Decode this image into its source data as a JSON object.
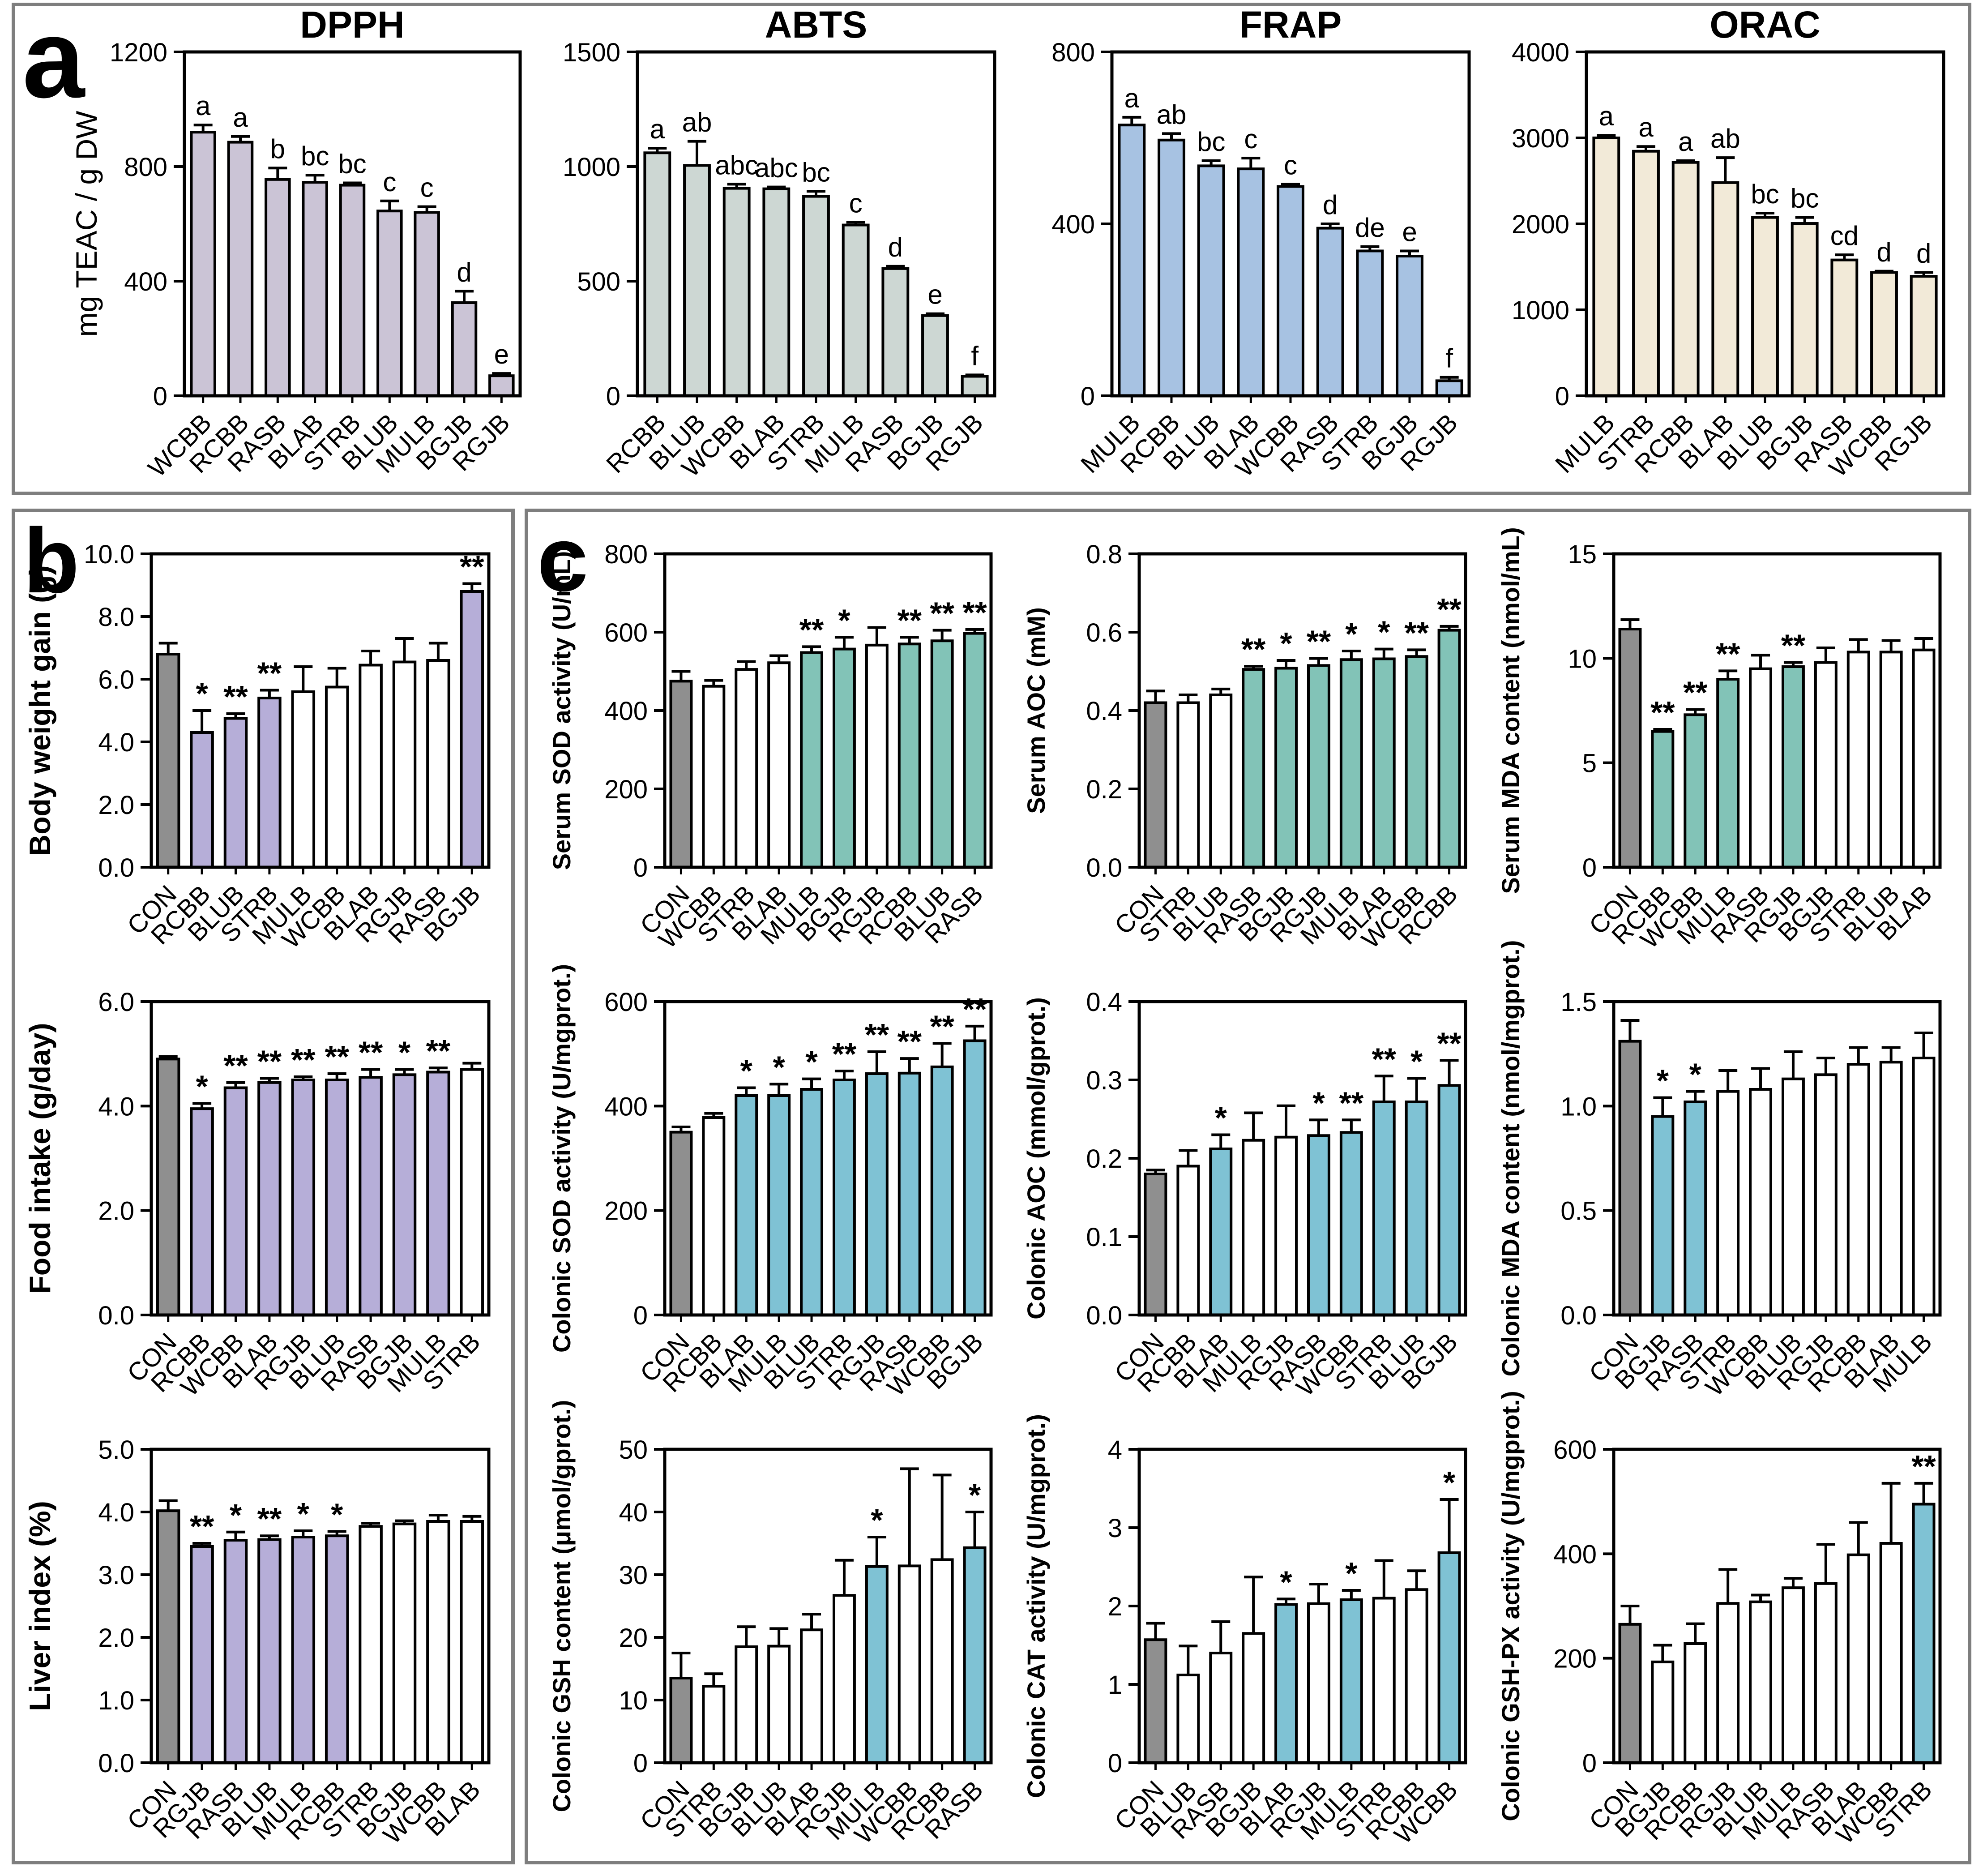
{
  "panels": [
    {
      "id": "a",
      "label": "a"
    },
    {
      "id": "b",
      "label": "b"
    },
    {
      "id": "c",
      "label": "c"
    }
  ],
  "palette": {
    "axis": "#000000",
    "panel_border": "#7e7e7e",
    "grey": "#8f8f8f",
    "white": "#ffffff",
    "purple": "#b6aed8",
    "teal": "#82c3b7",
    "blue": "#7fc2d4",
    "dpph": "#cbc4d6",
    "abts": "#cdd7d3",
    "frap": "#a7c2e2",
    "orac": "#f2ead8"
  },
  "chart_data": [
    {
      "id": "dpph",
      "panel": "a",
      "type": "bar",
      "title": "DPPH",
      "ylabel": "mg TEAC / g DW",
      "ylim": [
        0,
        1200
      ],
      "yticks": [
        0,
        400,
        800,
        1200
      ],
      "ytick_labels": [
        "0",
        "400",
        "800",
        "1200"
      ],
      "categories": [
        "WCBB",
        "RCBB",
        "RASB",
        "BLAB",
        "STRB",
        "BLUB",
        "MULB",
        "BGJB",
        "RGJB"
      ],
      "values": [
        920,
        885,
        755,
        745,
        735,
        645,
        640,
        325,
        70
      ],
      "errors": [
        25,
        20,
        40,
        25,
        8,
        35,
        20,
        40,
        8
      ],
      "annotations": [
        "a",
        "a",
        "b",
        "bc",
        "bc",
        "c",
        "c",
        "d",
        "e"
      ],
      "fills": [
        "dpph",
        "dpph",
        "dpph",
        "dpph",
        "dpph",
        "dpph",
        "dpph",
        "dpph",
        "dpph"
      ]
    },
    {
      "id": "abts",
      "panel": "a",
      "type": "bar",
      "title": "ABTS",
      "ylabel": "",
      "ylim": [
        0,
        1500
      ],
      "yticks": [
        0,
        500,
        1000,
        1500
      ],
      "ytick_labels": [
        "0",
        "500",
        "1000",
        "1500"
      ],
      "categories": [
        "RCBB",
        "BLUB",
        "WCBB",
        "BLAB",
        "STRB",
        "MULB",
        "RASB",
        "BGJB",
        "RGJB"
      ],
      "values": [
        1060,
        1005,
        905,
        903,
        870,
        745,
        555,
        350,
        85
      ],
      "errors": [
        20,
        105,
        18,
        8,
        22,
        12,
        10,
        8,
        6
      ],
      "annotations": [
        "a",
        "ab",
        "abc",
        "abc",
        "bc",
        "c",
        "d",
        "e",
        "f"
      ],
      "fills": [
        "abts",
        "abts",
        "abts",
        "abts",
        "abts",
        "abts",
        "abts",
        "abts",
        "abts"
      ]
    },
    {
      "id": "frap",
      "panel": "a",
      "type": "bar",
      "title": "FRAP",
      "ylabel": "",
      "ylim": [
        0,
        800
      ],
      "yticks": [
        0,
        400,
        800
      ],
      "ytick_labels": [
        "0",
        "400",
        "800"
      ],
      "categories": [
        "MULB",
        "RCBB",
        "BLUB",
        "BLAB",
        "WCBB",
        "RASB",
        "STRB",
        "BGJB",
        "RGJB"
      ],
      "values": [
        630,
        595,
        535,
        528,
        487,
        390,
        337,
        325,
        35
      ],
      "errors": [
        18,
        15,
        12,
        25,
        5,
        10,
        10,
        12,
        8
      ],
      "annotations": [
        "a",
        "ab",
        "bc",
        "c",
        "c",
        "d",
        "de",
        "e",
        "f"
      ],
      "fills": [
        "frap",
        "frap",
        "frap",
        "frap",
        "frap",
        "frap",
        "frap",
        "frap",
        "frap"
      ]
    },
    {
      "id": "orac",
      "panel": "a",
      "type": "bar",
      "title": "ORAC",
      "ylabel": "",
      "ylim": [
        0,
        4000
      ],
      "yticks": [
        0,
        1000,
        2000,
        3000,
        4000
      ],
      "ytick_labels": [
        "0",
        "1000",
        "2000",
        "3000",
        "4000"
      ],
      "categories": [
        "MULB",
        "STRB",
        "RCBB",
        "BLAB",
        "BLUB",
        "BGJB",
        "RASB",
        "WCBB",
        "RGJB"
      ],
      "values": [
        3000,
        2845,
        2715,
        2480,
        2075,
        2005,
        1580,
        1435,
        1390
      ],
      "errors": [
        30,
        55,
        20,
        290,
        50,
        70,
        60,
        15,
        45
      ],
      "annotations": [
        "a",
        "a",
        "a",
        "ab",
        "bc",
        "bc",
        "cd",
        "d",
        "d"
      ],
      "fills": [
        "orac",
        "orac",
        "orac",
        "orac",
        "orac",
        "orac",
        "orac",
        "orac",
        "orac"
      ]
    },
    {
      "id": "body_weight_gain",
      "panel": "b",
      "type": "bar",
      "title": "",
      "ylabel": "Body weight gain (g)",
      "ylim": [
        0,
        10
      ],
      "yticks": [
        0,
        2,
        4,
        6,
        8,
        10
      ],
      "ytick_labels": [
        "0.0",
        "2.0",
        "4.0",
        "6.0",
        "8.0",
        "10.0"
      ],
      "categories": [
        "CON",
        "RCBB",
        "BLUB",
        "STRB",
        "MULB",
        "WCBB",
        "BLAB",
        "RGJB",
        "RASB",
        "BGJB"
      ],
      "values": [
        6.8,
        4.3,
        4.75,
        5.4,
        5.6,
        5.75,
        6.45,
        6.55,
        6.6,
        8.8
      ],
      "errors": [
        0.35,
        0.7,
        0.15,
        0.25,
        0.8,
        0.6,
        0.45,
        0.75,
        0.55,
        0.25
      ],
      "annotations": [
        "",
        "*",
        "**",
        "**",
        "",
        "",
        "",
        "",
        "",
        "**"
      ],
      "fills": [
        "grey",
        "purple",
        "purple",
        "purple",
        "white",
        "white",
        "white",
        "white",
        "white",
        "purple"
      ]
    },
    {
      "id": "food_intake",
      "panel": "b",
      "type": "bar",
      "title": "",
      "ylabel": "Food intake (g/day)",
      "ylim": [
        0,
        6
      ],
      "yticks": [
        0,
        2,
        4,
        6
      ],
      "ytick_labels": [
        "0.0",
        "2.0",
        "4.0",
        "6.0"
      ],
      "categories": [
        "CON",
        "RCBB",
        "WCBB",
        "BLAB",
        "RGJB",
        "BLUB",
        "RASB",
        "BGJB",
        "MULB",
        "STRB"
      ],
      "values": [
        4.9,
        3.95,
        4.35,
        4.45,
        4.5,
        4.5,
        4.55,
        4.6,
        4.65,
        4.7
      ],
      "errors": [
        0.05,
        0.1,
        0.1,
        0.08,
        0.06,
        0.12,
        0.15,
        0.1,
        0.08,
        0.12
      ],
      "annotations": [
        "",
        "*",
        "**",
        "**",
        "**",
        "**",
        "**",
        "*",
        "**",
        ""
      ],
      "fills": [
        "grey",
        "purple",
        "purple",
        "purple",
        "purple",
        "purple",
        "purple",
        "purple",
        "purple",
        "white"
      ]
    },
    {
      "id": "liver_index",
      "panel": "b",
      "type": "bar",
      "title": "",
      "ylabel": "Liver index (%)",
      "ylim": [
        0,
        5
      ],
      "yticks": [
        0,
        1,
        2,
        3,
        4,
        5
      ],
      "ytick_labels": [
        "0.0",
        "1.0",
        "2.0",
        "3.0",
        "4.0",
        "5.0"
      ],
      "categories": [
        "CON",
        "RGJB",
        "RASB",
        "BLUB",
        "MULB",
        "RCBB",
        "STRB",
        "BGJB",
        "WCBB",
        "BLAB"
      ],
      "values": [
        4.02,
        3.45,
        3.55,
        3.56,
        3.6,
        3.62,
        3.77,
        3.81,
        3.85,
        3.85
      ],
      "errors": [
        0.16,
        0.05,
        0.13,
        0.06,
        0.1,
        0.07,
        0.05,
        0.05,
        0.1,
        0.08
      ],
      "annotations": [
        "",
        "**",
        "*",
        "**",
        "*",
        "*",
        "",
        "",
        "",
        ""
      ],
      "fills": [
        "grey",
        "purple",
        "purple",
        "purple",
        "purple",
        "purple",
        "white",
        "white",
        "white",
        "white"
      ]
    },
    {
      "id": "serum_sod",
      "panel": "c",
      "type": "bar",
      "title": "",
      "ylabel": "Serum SOD activity (U/mL)",
      "ylim": [
        0,
        800
      ],
      "yticks": [
        0,
        200,
        400,
        600,
        800
      ],
      "ytick_labels": [
        "0",
        "200",
        "400",
        "600",
        "800"
      ],
      "categories": [
        "CON",
        "WCBB",
        "STRB",
        "BLAB",
        "MULB",
        "BGJB",
        "RGJB",
        "RCBB",
        "BLUB",
        "RASB"
      ],
      "values": [
        475,
        462,
        505,
        522,
        548,
        557,
        567,
        570,
        578,
        597
      ],
      "errors": [
        25,
        15,
        20,
        18,
        15,
        30,
        45,
        17,
        27,
        10
      ],
      "annotations": [
        "",
        "",
        "",
        "",
        "**",
        "*",
        "",
        "**",
        "**",
        "**"
      ],
      "fills": [
        "grey",
        "white",
        "white",
        "white",
        "teal",
        "teal",
        "white",
        "teal",
        "teal",
        "teal"
      ]
    },
    {
      "id": "serum_aoc",
      "panel": "c",
      "type": "bar",
      "title": "",
      "ylabel": "Serum AOC (mM)",
      "ylim": [
        0,
        0.8
      ],
      "yticks": [
        0,
        0.2,
        0.4,
        0.6,
        0.8
      ],
      "ytick_labels": [
        "0.0",
        "0.2",
        "0.4",
        "0.6",
        "0.8"
      ],
      "categories": [
        "CON",
        "STRB",
        "BLUB",
        "RASB",
        "BGJB",
        "RGJB",
        "MULB",
        "BLAB",
        "WCBB",
        "RCBB"
      ],
      "values": [
        0.42,
        0.42,
        0.44,
        0.505,
        0.508,
        0.515,
        0.53,
        0.532,
        0.538,
        0.605
      ],
      "errors": [
        0.03,
        0.02,
        0.015,
        0.008,
        0.02,
        0.018,
        0.022,
        0.025,
        0.017,
        0.01
      ],
      "annotations": [
        "",
        "",
        "",
        "**",
        "*",
        "**",
        "*",
        "*",
        "**",
        "**"
      ],
      "fills": [
        "grey",
        "white",
        "white",
        "teal",
        "teal",
        "teal",
        "teal",
        "teal",
        "teal",
        "teal"
      ]
    },
    {
      "id": "serum_mda",
      "panel": "c",
      "type": "bar",
      "title": "",
      "ylabel": "Serum MDA content (nmol/mL)",
      "ylim": [
        0,
        15
      ],
      "yticks": [
        0,
        5,
        10,
        15
      ],
      "ytick_labels": [
        "0",
        "5",
        "10",
        "15"
      ],
      "categories": [
        "CON",
        "RCBB",
        "WCBB",
        "MULB",
        "RASB",
        "RGJB",
        "BGJB",
        "STRB",
        "BLUB",
        "BLAB"
      ],
      "values": [
        11.4,
        6.5,
        7.3,
        9.0,
        9.5,
        9.6,
        9.8,
        10.3,
        10.3,
        10.4
      ],
      "errors": [
        0.45,
        0.1,
        0.25,
        0.4,
        0.65,
        0.2,
        0.7,
        0.6,
        0.55,
        0.55
      ],
      "annotations": [
        "",
        "**",
        "**",
        "**",
        "",
        "**",
        "",
        "",
        "",
        ""
      ],
      "fills": [
        "grey",
        "teal",
        "teal",
        "teal",
        "white",
        "teal",
        "white",
        "white",
        "white",
        "white"
      ]
    },
    {
      "id": "colonic_sod",
      "panel": "c",
      "type": "bar",
      "title": "",
      "ylabel": "Colonic SOD activity (U/mgprot.)",
      "ylim": [
        0,
        600
      ],
      "yticks": [
        0,
        200,
        400,
        600
      ],
      "ytick_labels": [
        "0",
        "200",
        "400",
        "600"
      ],
      "categories": [
        "CON",
        "RCBB",
        "BLAB",
        "MULB",
        "BLUB",
        "STRB",
        "RGJB",
        "RASB",
        "WCBB",
        "BGJB"
      ],
      "values": [
        350,
        378,
        420,
        420,
        432,
        450,
        462,
        463,
        475,
        525
      ],
      "errors": [
        10,
        8,
        15,
        22,
        20,
        17,
        42,
        28,
        45,
        28
      ],
      "annotations": [
        "",
        "",
        "*",
        "*",
        "*",
        "**",
        "**",
        "**",
        "**",
        "**"
      ],
      "fills": [
        "grey",
        "white",
        "blue",
        "blue",
        "blue",
        "blue",
        "blue",
        "blue",
        "blue",
        "blue"
      ]
    },
    {
      "id": "colonic_aoc",
      "panel": "c",
      "type": "bar",
      "title": "",
      "ylabel": "Colonic AOC (mmol/gprot.)",
      "ylim": [
        0,
        0.4
      ],
      "yticks": [
        0,
        0.1,
        0.2,
        0.3,
        0.4
      ],
      "ytick_labels": [
        "0.0",
        "0.1",
        "0.2",
        "0.3",
        "0.4"
      ],
      "categories": [
        "CON",
        "RCBB",
        "BLAB",
        "MULB",
        "RGJB",
        "RASB",
        "WCBB",
        "STRB",
        "BLUB",
        "BGJB"
      ],
      "values": [
        0.18,
        0.19,
        0.212,
        0.223,
        0.227,
        0.229,
        0.233,
        0.272,
        0.272,
        0.293
      ],
      "errors": [
        0.005,
        0.02,
        0.018,
        0.035,
        0.04,
        0.02,
        0.016,
        0.033,
        0.03,
        0.032
      ],
      "annotations": [
        "",
        "",
        "*",
        "",
        "",
        "*",
        "**",
        "**",
        "*",
        "**"
      ],
      "fills": [
        "grey",
        "white",
        "blue",
        "white",
        "white",
        "blue",
        "blue",
        "blue",
        "blue",
        "blue"
      ]
    },
    {
      "id": "colonic_mda",
      "panel": "c",
      "type": "bar",
      "title": "",
      "ylabel": "Colonic MDA content (nmol/mgprot.)",
      "ylim": [
        0,
        1.5
      ],
      "yticks": [
        0,
        0.5,
        1.0,
        1.5
      ],
      "ytick_labels": [
        "0.0",
        "0.5",
        "1.0",
        "1.5"
      ],
      "categories": [
        "CON",
        "BGJB",
        "RASB",
        "STRB",
        "WCBB",
        "BLUB",
        "RGJB",
        "RCBB",
        "BLAB",
        "MULB"
      ],
      "values": [
        1.31,
        0.95,
        1.02,
        1.07,
        1.08,
        1.13,
        1.15,
        1.2,
        1.21,
        1.23
      ],
      "errors": [
        0.1,
        0.09,
        0.05,
        0.1,
        0.1,
        0.13,
        0.08,
        0.08,
        0.07,
        0.12
      ],
      "annotations": [
        "",
        "*",
        "*",
        "",
        "",
        "",
        "",
        "",
        "",
        ""
      ],
      "fills": [
        "grey",
        "blue",
        "blue",
        "white",
        "white",
        "white",
        "white",
        "white",
        "white",
        "white"
      ]
    },
    {
      "id": "colonic_gsh",
      "panel": "c",
      "type": "bar",
      "title": "",
      "ylabel": "Colonic GSH content (μmol/gprot.)",
      "ylim": [
        0,
        50
      ],
      "yticks": [
        0,
        10,
        20,
        30,
        40,
        50
      ],
      "ytick_labels": [
        "0",
        "10",
        "20",
        "30",
        "40",
        "50"
      ],
      "categories": [
        "CON",
        "STRB",
        "BGJB",
        "BLUB",
        "BLAB",
        "RGJB",
        "MULB",
        "WCBB",
        "RCBB",
        "RASB"
      ],
      "values": [
        13.5,
        12.2,
        18.5,
        18.6,
        21.2,
        26.7,
        31.3,
        31.4,
        32.4,
        34.3
      ],
      "errors": [
        4.0,
        2.0,
        3.2,
        2.8,
        2.5,
        5.6,
        4.7,
        15.5,
        13.5,
        5.7
      ],
      "annotations": [
        "",
        "",
        "",
        "",
        "",
        "",
        "*",
        "",
        "",
        "*"
      ],
      "fills": [
        "grey",
        "white",
        "white",
        "white",
        "white",
        "white",
        "blue",
        "white",
        "white",
        "blue"
      ]
    },
    {
      "id": "colonic_cat",
      "panel": "c",
      "type": "bar",
      "title": "",
      "ylabel": "Colonic CAT activity (U/mgprot.)",
      "ylim": [
        0,
        4
      ],
      "yticks": [
        0,
        1,
        2,
        3,
        4
      ],
      "ytick_labels": [
        "0",
        "1",
        "2",
        "3",
        "4"
      ],
      "categories": [
        "CON",
        "BLUB",
        "RASB",
        "BGJB",
        "BLAB",
        "RGJB",
        "MULB",
        "STRB",
        "RCBB",
        "WCBB"
      ],
      "values": [
        1.57,
        1.12,
        1.4,
        1.65,
        2.02,
        2.03,
        2.08,
        2.1,
        2.21,
        2.68
      ],
      "errors": [
        0.21,
        0.37,
        0.4,
        0.72,
        0.07,
        0.25,
        0.12,
        0.48,
        0.24,
        0.68
      ],
      "annotations": [
        "",
        "",
        "",
        "",
        "*",
        "",
        "*",
        "",
        "",
        "*"
      ],
      "fills": [
        "grey",
        "white",
        "white",
        "white",
        "blue",
        "white",
        "blue",
        "white",
        "white",
        "blue"
      ]
    },
    {
      "id": "colonic_gshpx",
      "panel": "c",
      "type": "bar",
      "title": "",
      "ylabel": "Colonic GSH-PX activity (U/mgprot.)",
      "ylim": [
        0,
        600
      ],
      "yticks": [
        0,
        200,
        400,
        600
      ],
      "ytick_labels": [
        "0",
        "200",
        "400",
        "600"
      ],
      "categories": [
        "CON",
        "BGJB",
        "RCBB",
        "RGJB",
        "BLUB",
        "MULB",
        "RASB",
        "BLAB",
        "WCBB",
        "STRB"
      ],
      "values": [
        265,
        193,
        228,
        305,
        308,
        335,
        343,
        398,
        420,
        495
      ],
      "errors": [
        35,
        32,
        38,
        65,
        13,
        18,
        75,
        62,
        115,
        40
      ],
      "annotations": [
        "",
        "",
        "",
        "",
        "",
        "",
        "",
        "",
        "",
        "**"
      ],
      "fills": [
        "grey",
        "white",
        "white",
        "white",
        "white",
        "white",
        "white",
        "white",
        "white",
        "blue"
      ]
    }
  ]
}
